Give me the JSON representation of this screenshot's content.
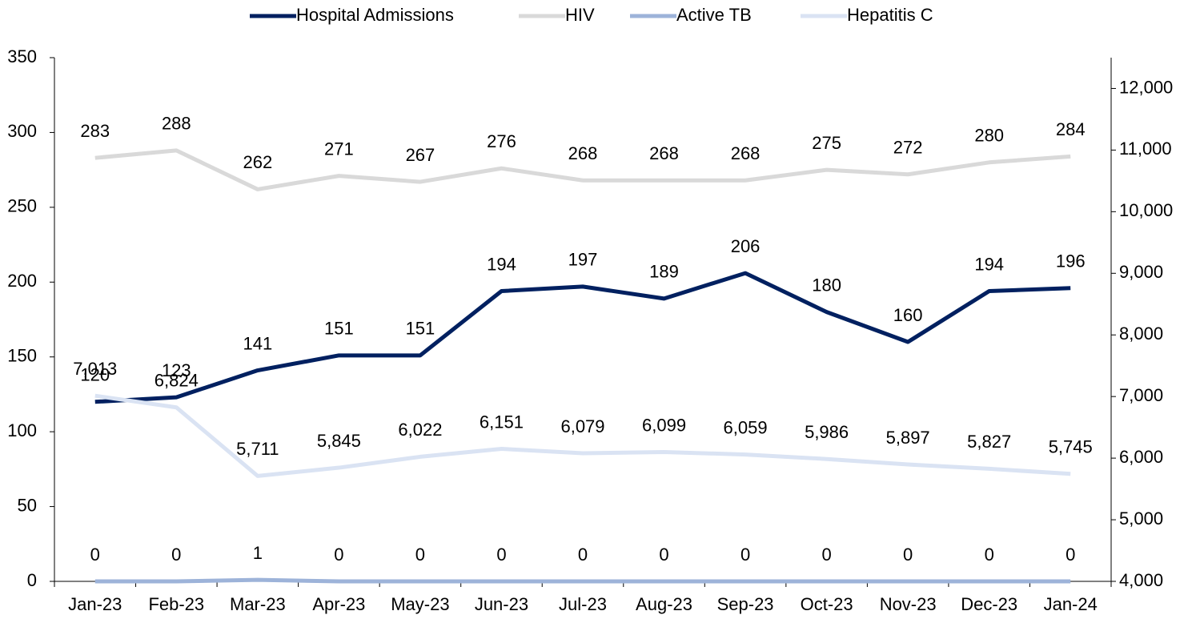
{
  "chart_data": {
    "type": "line",
    "categories": [
      "Jan-23",
      "Feb-23",
      "Mar-23",
      "Apr-23",
      "May-23",
      "Jun-23",
      "Jul-23",
      "Aug-23",
      "Sep-23",
      "Oct-23",
      "Nov-23",
      "Dec-23",
      "Jan-24"
    ],
    "series": [
      {
        "name": "Hospital Admissions",
        "color": "#002060",
        "values": [
          120,
          123,
          141,
          151,
          151,
          194,
          197,
          189,
          206,
          180,
          160,
          194,
          196
        ]
      },
      {
        "name": "HIV",
        "color": "#d9d9d9",
        "values": [
          283,
          288,
          262,
          271,
          267,
          276,
          268,
          268,
          268,
          275,
          272,
          280,
          284
        ]
      },
      {
        "name": "Active TB",
        "color": "#9db3d9",
        "values": [
          0,
          0,
          1,
          0,
          0,
          0,
          0,
          0,
          0,
          0,
          0,
          0,
          0
        ]
      },
      {
        "name": "Hepatitis C",
        "color": "#dae3f3",
        "axis": "y2",
        "values": [
          7013,
          6824,
          5711,
          5845,
          6022,
          6151,
          6079,
          6099,
          6059,
          5986,
          5897,
          5827,
          5745
        ],
        "value_labels": [
          "7,013",
          "6,824",
          "5,711",
          "5,845",
          "6,022",
          "6,151",
          "6,079",
          "6,099",
          "6,059",
          "5,986",
          "5,897",
          "5,827",
          "5,745"
        ]
      }
    ],
    "ylim": [
      0,
      350
    ],
    "yticks": [
      0,
      50,
      100,
      150,
      200,
      250,
      300,
      350
    ],
    "y2lim": [
      4000,
      12500
    ],
    "y2ticks": [
      {
        "value": 4000,
        "label": "4,000"
      },
      {
        "value": 5000,
        "label": "5,000"
      },
      {
        "value": 6000,
        "label": "6,000"
      },
      {
        "value": 7000,
        "label": "7,000"
      },
      {
        "value": 8000,
        "label": "8,000"
      },
      {
        "value": 9000,
        "label": "9,000"
      },
      {
        "value": 10000,
        "label": "10,000"
      },
      {
        "value": 11000,
        "label": "11,000"
      },
      {
        "value": 12000,
        "label": "12,000"
      }
    ],
    "legend": "top"
  }
}
